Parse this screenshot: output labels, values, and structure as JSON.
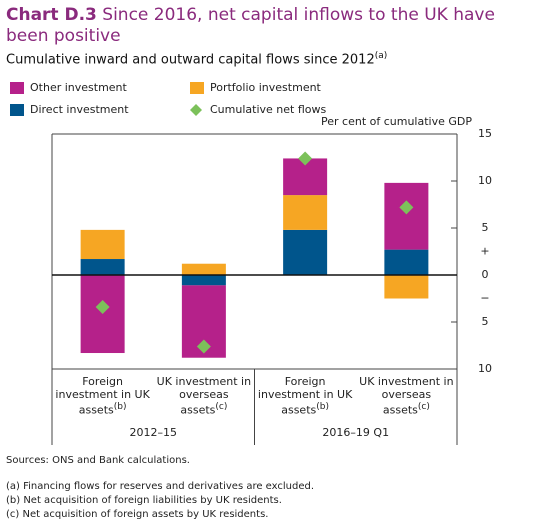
{
  "chart_data": {
    "type": "bar",
    "chart_number": "Chart D.3",
    "title": "Since 2016, net capital inflows to the UK have been positive",
    "subtitle": "Cumulative inward and outward capital flows since 2012",
    "subtitle_note": "(a)",
    "y_axis_label": "Per cent of cumulative GDP",
    "positive_label": "+",
    "negative_label": "−",
    "categories": [
      "Foreign investment in UK assets",
      "UK investment in overseas assets",
      "Foreign investment in UK assets",
      "UK investment in overseas assets"
    ],
    "category_notes": [
      "(b)",
      "(c)",
      "(b)",
      "(c)"
    ],
    "groups": [
      "2012–15",
      "2016–19 Q1"
    ],
    "series": [
      {
        "name": "Direct investment",
        "color": "#00558c",
        "values": [
          1.7,
          -1.1,
          4.8,
          2.7
        ]
      },
      {
        "name": "Portfolio investment",
        "color": "#f6a623",
        "values": [
          3.1,
          1.2,
          3.7,
          -2.5
        ]
      },
      {
        "name": "Other investment",
        "color": "#b5218a",
        "values": [
          -8.3,
          -7.7,
          3.9,
          7.1
        ]
      },
      {
        "name": "Cumulative net flows",
        "color": "#7cc15a",
        "marker": "diamond",
        "values": [
          -3.4,
          -7.6,
          12.4,
          7.2
        ]
      }
    ],
    "ylim": [
      -10,
      15
    ],
    "yticks": [
      {
        "value": -10,
        "label": "10"
      },
      {
        "value": -5,
        "label": "5"
      },
      0,
      5,
      10,
      15
    ],
    "sources": "Sources: ONS and Bank calculations.",
    "footnotes": [
      "(a) Financing flows for reserves and derivatives are excluded.",
      "(b) Net acquisition of foreign liabilities by UK residents.",
      "(c) Net acquisition of foreign assets by UK residents."
    ]
  }
}
